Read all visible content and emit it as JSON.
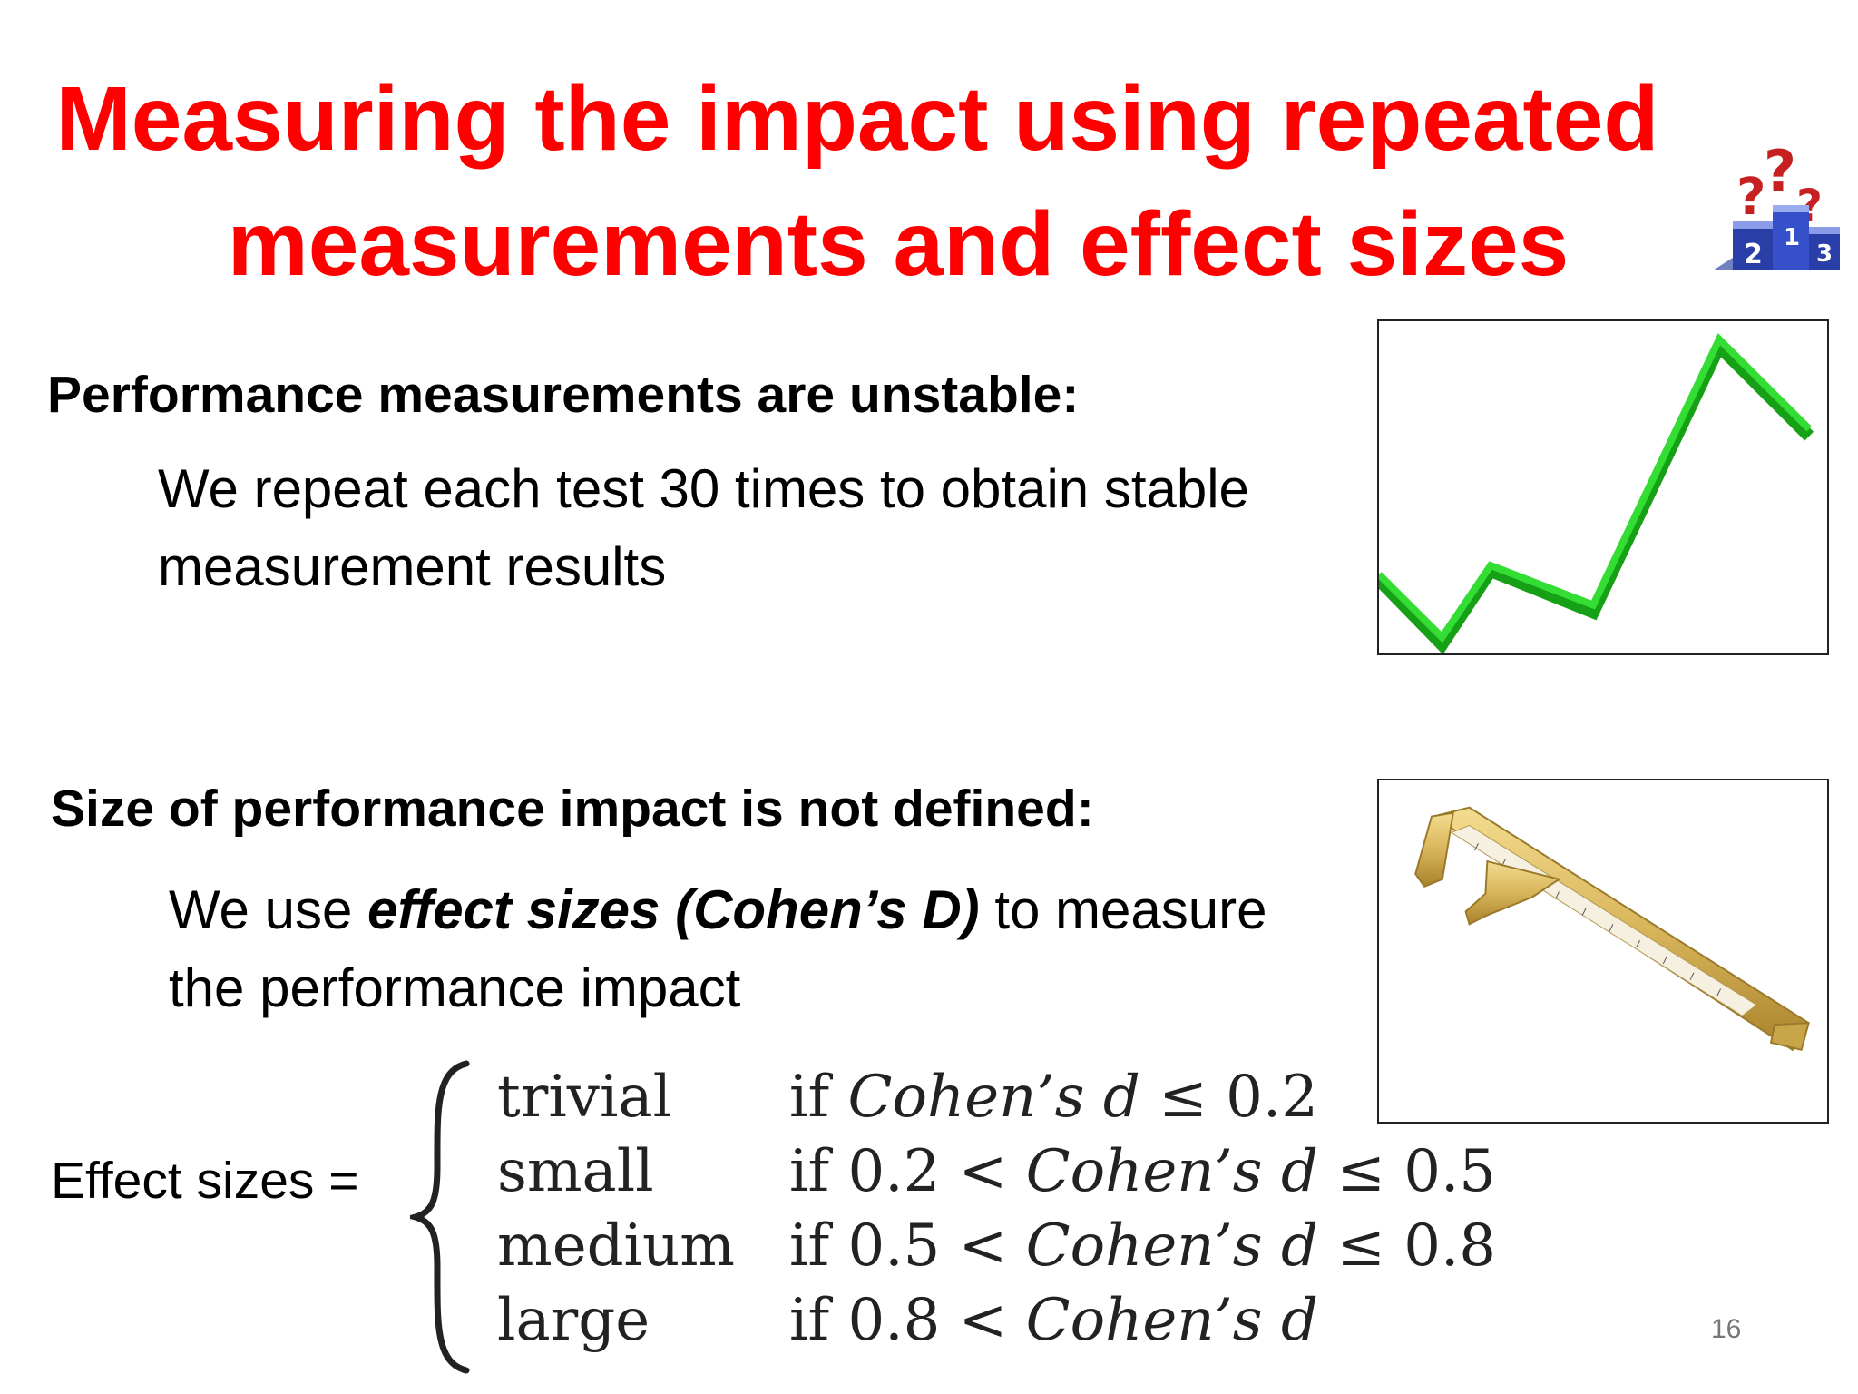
{
  "slide": {
    "title_line1": "Measuring the impact using repeated",
    "title_line2": "measurements and effect sizes",
    "section1": {
      "heading": "Performance measurements are unstable:",
      "body": "We repeat each test 30 times to obtain stable measurement results"
    },
    "section2": {
      "heading": "Size of performance impact is not defined:",
      "body_prefix": "We use ",
      "body_emphasis": "effect sizes (Cohen’s D)",
      "body_suffix": " to measure the performance impact"
    },
    "effect_sizes": {
      "label": "Effect sizes =",
      "cases": [
        {
          "name": "trivial",
          "cond_pre": "if ",
          "cond_var": "Cohen’s d",
          "cond_post": " ≤ 0.2"
        },
        {
          "name": "small",
          "cond_pre": "if 0.2 < ",
          "cond_var": "Cohen’s d",
          "cond_post": " ≤ 0.5"
        },
        {
          "name": "medium",
          "cond_pre": "if 0.5 < ",
          "cond_var": "Cohen’s d",
          "cond_post": " ≤ 0.8"
        },
        {
          "name": "large",
          "cond_pre": "if 0.8 < ",
          "cond_var": "Cohen’s d",
          "cond_post": ""
        }
      ]
    },
    "podium_numbers": [
      "2",
      "1",
      "3"
    ],
    "page_number": "16"
  },
  "colors": {
    "title": "#ff0000",
    "line": "#22cc22",
    "podium": "#2a3ea8"
  },
  "icons": {
    "podium": "podium-question-marks-icon",
    "chart": "unstable-line-chart-icon",
    "caliper": "caliper-icon"
  }
}
